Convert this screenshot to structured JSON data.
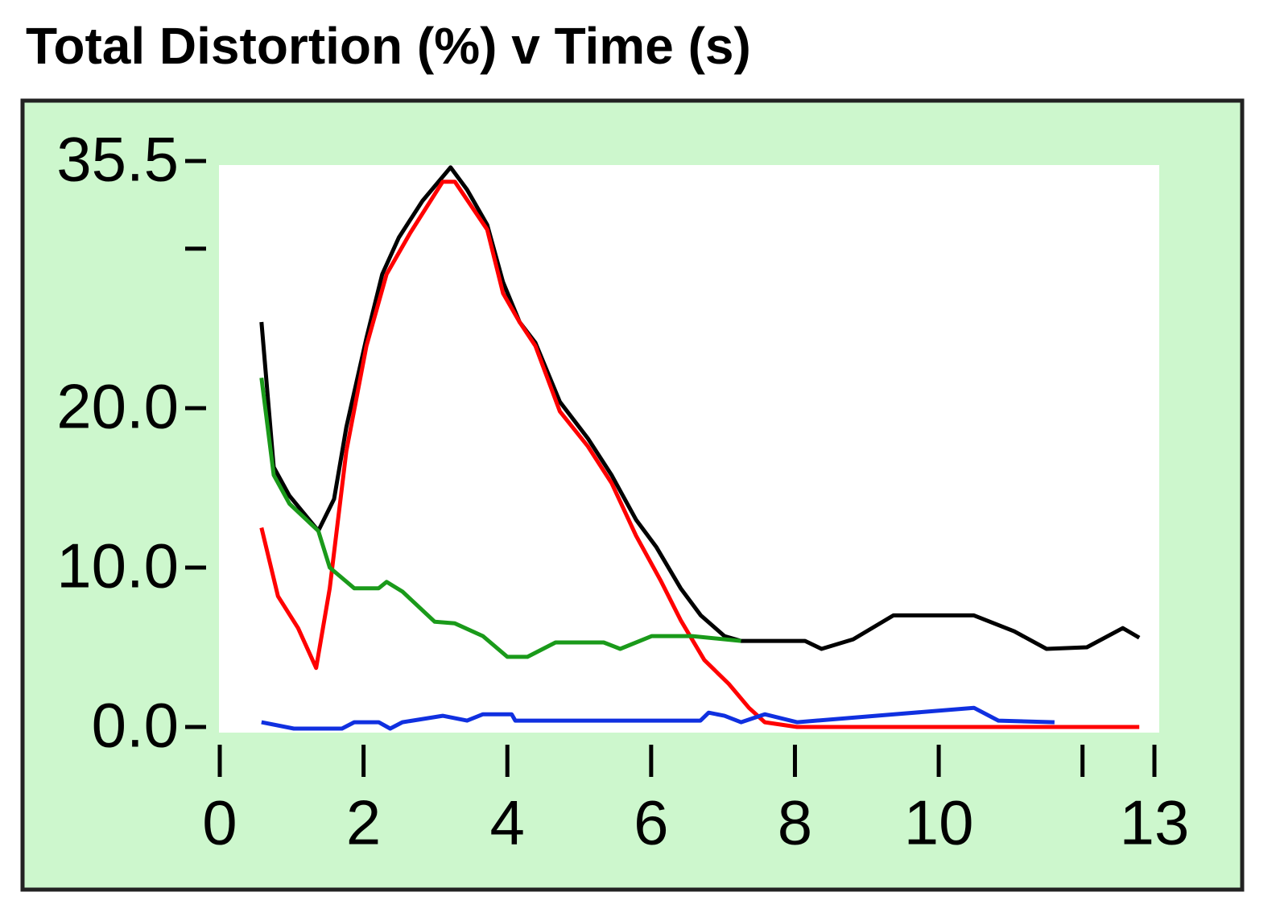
{
  "chart_data": {
    "type": "line",
    "title": "Total Distortion (%) v Time (s)",
    "xlim": [
      0,
      13
    ],
    "ylim": [
      0,
      35.5
    ],
    "xticks": [
      0,
      2,
      4,
      6,
      8,
      10,
      {
        "value": 12,
        "label": null
      },
      13
    ],
    "yticks": [
      {
        "value": 0,
        "label": "0.0"
      },
      {
        "value": 10,
        "label": "10.0"
      },
      {
        "value": 20,
        "label": "20.0"
      },
      {
        "value": 30,
        "label": null
      },
      35.5
    ],
    "background": "#cdf7cd",
    "series": [
      {
        "color": "#000000",
        "x": [
          0.58,
          0.75,
          0.97,
          1.37,
          1.59,
          1.76,
          2.04,
          2.26,
          2.49,
          2.82,
          3.21,
          3.44,
          3.72,
          3.94,
          4.17,
          4.39,
          4.73,
          5.12,
          5.45,
          5.79,
          6.07,
          6.41,
          6.69,
          7.02,
          7.25,
          8.14,
          8.37,
          8.81,
          9.37,
          10.49,
          11.05,
          11.5,
          12.06,
          12.56,
          12.79
        ],
        "values": [
          25.4,
          16.3,
          14.5,
          12.3,
          14.3,
          18.8,
          24.4,
          28.4,
          30.7,
          33,
          35.1,
          33.7,
          31.5,
          27.9,
          25.4,
          24.1,
          20.4,
          18.1,
          15.8,
          13,
          11.3,
          8.7,
          7,
          5.7,
          5.4,
          5.4,
          4.9,
          5.5,
          7,
          7,
          6,
          4.9,
          5,
          6.2,
          5.6
        ]
      },
      {
        "color": "#ff0000",
        "x": [
          0.58,
          0.81,
          1.09,
          1.34,
          1.53,
          1.76,
          2.04,
          2.32,
          2.65,
          3.1,
          3.27,
          3.72,
          3.94,
          4.17,
          4.39,
          4.73,
          5.12,
          5.45,
          5.79,
          6.13,
          6.41,
          6.74,
          7.08,
          7.36,
          7.58,
          8.03,
          12.79
        ],
        "values": [
          12.5,
          8.2,
          6.2,
          3.7,
          8.7,
          17.3,
          23.9,
          28.4,
          31,
          34.2,
          34.2,
          31.2,
          27.2,
          25.4,
          23.9,
          19.8,
          17.6,
          15.3,
          12,
          9.2,
          6.7,
          4.2,
          2.7,
          1.2,
          0.3,
          0,
          0
        ]
      },
      {
        "color": "#1a9a1a",
        "x": [
          0.58,
          0.75,
          0.97,
          1.37,
          1.53,
          1.87,
          2.21,
          2.32,
          2.54,
          2.99,
          3.27,
          3.66,
          4,
          4.28,
          4.67,
          5.34,
          5.57,
          6.01,
          6.57,
          7.25
        ],
        "values": [
          21.9,
          15.8,
          14,
          12.3,
          10,
          8.7,
          8.7,
          9.1,
          8.5,
          6.6,
          6.5,
          5.7,
          4.4,
          4.4,
          5.3,
          5.3,
          4.9,
          5.7,
          5.7,
          5.4
        ]
      },
      {
        "color": "#1030e0",
        "x": [
          0.58,
          1.03,
          1.7,
          1.87,
          2.21,
          2.37,
          2.54,
          3.1,
          3.44,
          3.66,
          4.06,
          4.11,
          6.686,
          6.8,
          7.02,
          7.25,
          7.58,
          8.03,
          10.49,
          10.83,
          11.61
        ],
        "values": [
          0.3,
          -0.1,
          -0.1,
          0.3,
          0.3,
          -0.1,
          0.3,
          0.7,
          0.4,
          0.8,
          0.8,
          0.4,
          0.4,
          0.9,
          0.7,
          0.3,
          0.8,
          0.3,
          1.2,
          0.4,
          0.3
        ]
      }
    ]
  }
}
